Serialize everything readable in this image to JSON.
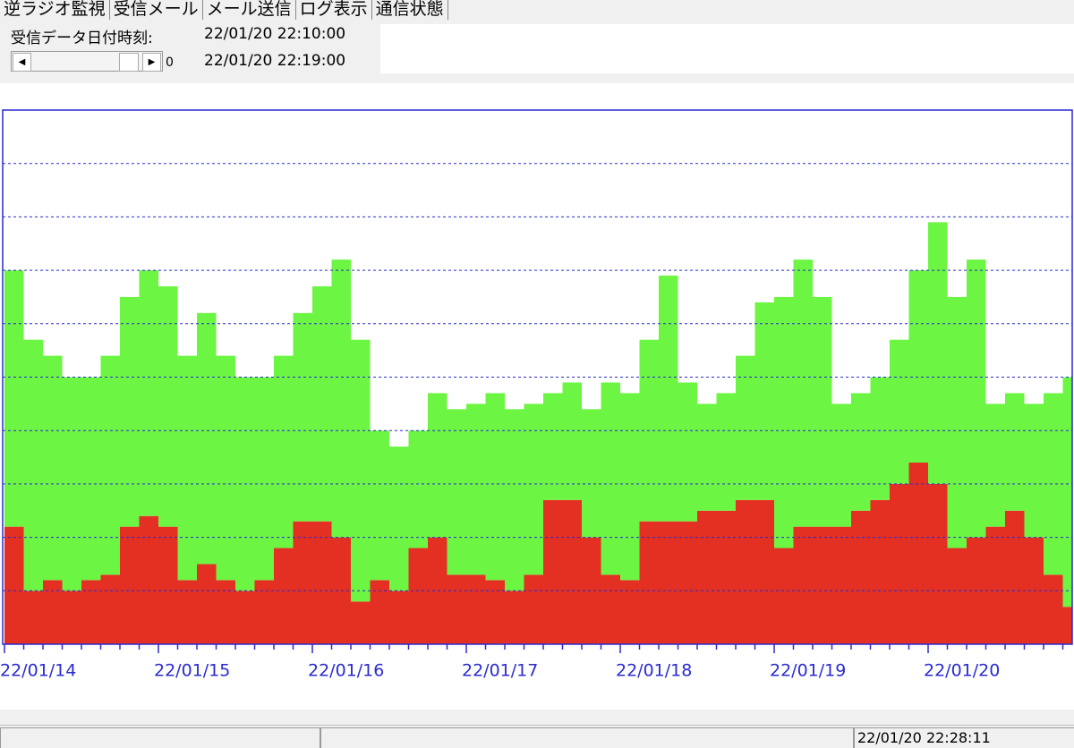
{
  "tabs": [
    "逆ラジオ監視",
    "受信メール",
    "メール送信",
    "ログ表示",
    "通信状態"
  ],
  "header": {
    "label": "受信データ日付時刻:",
    "time_from": "22/01/20 22:10:00",
    "time_to": "22/01/20 22:19:00",
    "scroll_value": 0
  },
  "chart_data": {
    "type": "bar",
    "stacked": true,
    "categories": [
      "22/01/14",
      null,
      null,
      null,
      null,
      null,
      null,
      null,
      "22/01/15",
      null,
      null,
      null,
      null,
      null,
      null,
      null,
      "22/01/16",
      null,
      null,
      null,
      null,
      null,
      null,
      null,
      "22/01/17",
      null,
      null,
      null,
      null,
      null,
      null,
      null,
      "22/01/18",
      null,
      null,
      null,
      null,
      null,
      null,
      null,
      "22/01/19",
      null,
      null,
      null,
      null,
      null,
      null,
      null,
      "22/01/20",
      null,
      null,
      null,
      null,
      null,
      null,
      null
    ],
    "series": [
      {
        "color": "#e33022",
        "values": [
          2.2,
          1.0,
          1.2,
          1.0,
          1.2,
          1.3,
          2.2,
          2.4,
          2.2,
          1.2,
          1.5,
          1.2,
          1.0,
          1.2,
          1.8,
          2.3,
          2.3,
          2.0,
          0.8,
          1.2,
          1.0,
          1.8,
          2.0,
          1.3,
          1.3,
          1.2,
          1.0,
          1.3,
          2.7,
          2.7,
          2.0,
          1.3,
          1.2,
          2.3,
          2.3,
          2.3,
          2.5,
          2.5,
          2.7,
          2.7,
          1.8,
          2.2,
          2.2,
          2.2,
          2.5,
          2.7,
          3.0,
          3.4,
          3.0,
          1.8,
          2.0,
          2.2,
          2.5,
          2.0,
          1.3,
          0.7
        ]
      },
      {
        "color": "#6cf542",
        "values": [
          4.8,
          4.7,
          4.2,
          4.0,
          3.8,
          4.1,
          4.3,
          4.6,
          4.5,
          4.2,
          4.7,
          4.2,
          4.0,
          3.8,
          3.6,
          3.9,
          4.4,
          5.2,
          4.9,
          2.8,
          2.7,
          2.2,
          2.7,
          3.1,
          3.2,
          3.5,
          3.4,
          3.2,
          2.0,
          2.2,
          2.4,
          3.6,
          3.5,
          3.4,
          4.6,
          2.6,
          2.0,
          2.2,
          2.7,
          3.7,
          4.7,
          5.0,
          4.3,
          2.3,
          2.2,
          2.3,
          2.7,
          3.6,
          4.9,
          4.7,
          5.2,
          2.3,
          2.2,
          2.5,
          3.4,
          4.3
        ]
      }
    ],
    "ylim": [
      0,
      10
    ],
    "yticks": [
      1,
      2,
      3,
      4,
      5,
      6,
      7,
      8,
      9
    ],
    "grid": true
  },
  "status": {
    "time": "22/01/20 22:28:11"
  }
}
